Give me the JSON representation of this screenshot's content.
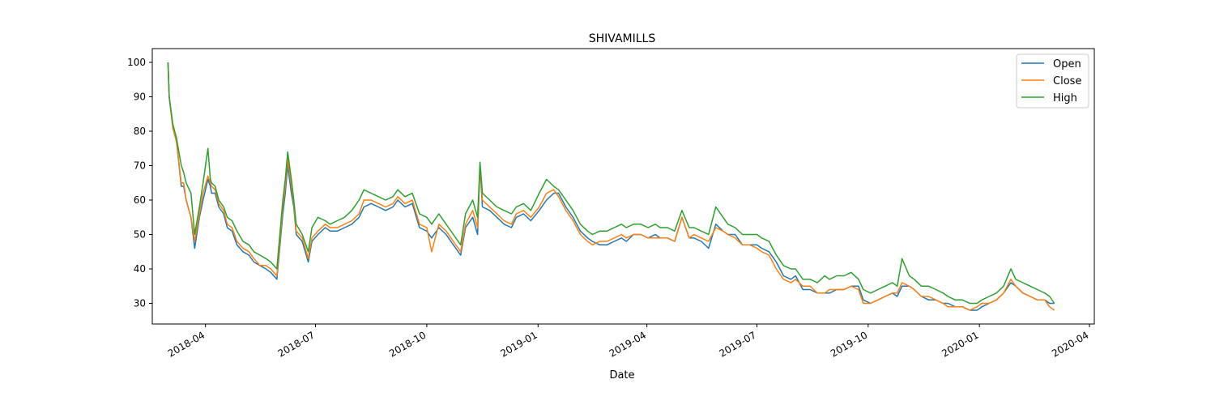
{
  "chart_data": {
    "type": "line",
    "title": "SHIVAMILLS",
    "xlabel": "Date",
    "ylabel": "",
    "xlim": [
      "2018-02-16",
      "2020-04-05"
    ],
    "ylim": [
      24,
      104
    ],
    "yticks": [
      30,
      40,
      50,
      60,
      70,
      80,
      90,
      100
    ],
    "xticks": [
      "2018-04",
      "2018-07",
      "2018-10",
      "2019-01",
      "2019-04",
      "2019-07",
      "2019-10",
      "2020-01",
      "2020-04"
    ],
    "grid": false,
    "legend_position": "top-right",
    "x": [
      "2018-03-01",
      "2018-03-02",
      "2018-03-05",
      "2018-03-08",
      "2018-03-12",
      "2018-03-14",
      "2018-03-16",
      "2018-03-20",
      "2018-03-23",
      "2018-03-27",
      "2018-03-30",
      "2018-04-03",
      "2018-04-05",
      "2018-04-06",
      "2018-04-09",
      "2018-04-12",
      "2018-04-16",
      "2018-04-19",
      "2018-04-23",
      "2018-04-27",
      "2018-05-02",
      "2018-05-07",
      "2018-05-11",
      "2018-05-16",
      "2018-05-21",
      "2018-05-25",
      "2018-05-30",
      "2018-06-04",
      "2018-06-06",
      "2018-06-08",
      "2018-06-11",
      "2018-06-13",
      "2018-06-15",
      "2018-06-20",
      "2018-06-25",
      "2018-06-28",
      "2018-07-03",
      "2018-07-09",
      "2018-07-13",
      "2018-07-19",
      "2018-07-25",
      "2018-07-31",
      "2018-08-06",
      "2018-08-10",
      "2018-08-16",
      "2018-08-22",
      "2018-08-28",
      "2018-09-03",
      "2018-09-07",
      "2018-09-13",
      "2018-09-19",
      "2018-09-25",
      "2018-10-01",
      "2018-10-05",
      "2018-10-11",
      "2018-10-17",
      "2018-10-23",
      "2018-10-29",
      "2018-11-02",
      "2018-11-08",
      "2018-11-12",
      "2018-11-14",
      "2018-11-16",
      "2018-11-22",
      "2018-11-28",
      "2018-12-04",
      "2018-12-10",
      "2018-12-14",
      "2018-12-20",
      "2018-12-26",
      "2019-01-02",
      "2019-01-08",
      "2019-01-14",
      "2019-01-18",
      "2019-01-24",
      "2019-01-30",
      "2019-02-05",
      "2019-02-11",
      "2019-02-15",
      "2019-02-21",
      "2019-02-27",
      "2019-03-05",
      "2019-03-11",
      "2019-03-15",
      "2019-03-21",
      "2019-03-27",
      "2019-04-02",
      "2019-04-08",
      "2019-04-12",
      "2019-04-18",
      "2019-04-24",
      "2019-04-30",
      "2019-05-06",
      "2019-05-10",
      "2019-05-16",
      "2019-05-22",
      "2019-05-28",
      "2019-06-03",
      "2019-06-07",
      "2019-06-13",
      "2019-06-19",
      "2019-06-25",
      "2019-07-01",
      "2019-07-05",
      "2019-07-11",
      "2019-07-17",
      "2019-07-23",
      "2019-07-29",
      "2019-08-02",
      "2019-08-08",
      "2019-08-14",
      "2019-08-20",
      "2019-08-26",
      "2019-08-30",
      "2019-09-05",
      "2019-09-11",
      "2019-09-17",
      "2019-09-23",
      "2019-09-27",
      "2019-10-03",
      "2019-10-09",
      "2019-10-15",
      "2019-10-21",
      "2019-10-25",
      "2019-10-29",
      "2019-11-04",
      "2019-11-08",
      "2019-11-14",
      "2019-11-20",
      "2019-11-26",
      "2019-12-02",
      "2019-12-06",
      "2019-12-12",
      "2019-12-18",
      "2019-12-24",
      "2019-12-30",
      "2020-01-03",
      "2020-01-09",
      "2020-01-15",
      "2020-01-21",
      "2020-01-27",
      "2020-01-31",
      "2020-02-06",
      "2020-02-12",
      "2020-02-18",
      "2020-02-24",
      "2020-02-28",
      "2020-03-03"
    ],
    "series": [
      {
        "name": "Open",
        "color": "#1f77b4",
        "values": [
          100,
          90,
          81,
          77,
          64,
          64,
          60,
          55,
          46,
          55,
          60,
          66,
          64,
          62,
          62,
          58,
          56,
          52,
          51,
          47,
          45,
          44,
          42,
          41,
          40,
          39,
          37,
          56,
          62,
          70,
          62,
          58,
          50,
          48,
          42,
          48,
          50,
          52,
          51,
          51,
          52,
          53,
          55,
          58,
          59,
          58,
          57,
          58,
          60,
          58,
          59,
          52,
          51,
          49,
          52,
          50,
          47,
          44,
          52,
          55,
          50,
          70,
          58,
          57,
          55,
          53,
          52,
          55,
          56,
          54,
          57,
          60,
          62,
          62,
          58,
          55,
          51,
          49,
          48,
          47,
          47,
          48,
          49,
          48,
          50,
          50,
          49,
          50,
          49,
          49,
          48,
          55,
          49,
          49,
          48,
          46,
          53,
          51,
          50,
          50,
          47,
          47,
          47,
          46,
          45,
          42,
          38,
          37,
          38,
          34,
          34,
          33,
          33,
          33,
          34,
          34,
          35,
          35,
          31,
          30,
          31,
          32,
          33,
          32,
          35,
          35,
          34,
          32,
          31,
          31,
          30,
          30,
          29,
          29,
          28,
          28,
          29,
          30,
          31,
          33,
          36,
          35,
          33,
          32,
          31,
          31,
          30,
          30
        ]
      },
      {
        "name": "Close",
        "color": "#ff7f0e",
        "values": [
          100,
          90,
          81,
          77,
          65,
          65,
          60,
          55,
          48,
          56,
          62,
          67,
          65,
          64,
          63,
          59,
          57,
          53,
          52,
          48,
          46,
          45,
          43,
          41,
          41,
          40,
          38,
          58,
          64,
          72,
          64,
          59,
          51,
          49,
          43,
          49,
          51,
          53,
          52,
          52,
          53,
          54,
          56,
          60,
          60,
          59,
          58,
          59,
          61,
          59,
          60,
          53,
          52,
          45,
          53,
          51,
          48,
          45,
          53,
          57,
          52,
          70,
          60,
          58,
          56,
          54,
          53,
          56,
          57,
          55,
          58,
          62,
          63,
          61,
          57,
          54,
          50,
          48,
          47,
          48,
          48,
          49,
          50,
          49,
          50,
          50,
          49,
          49,
          49,
          49,
          48,
          55,
          49,
          50,
          49,
          48,
          52,
          51,
          50,
          49,
          47,
          47,
          46,
          45,
          44,
          40,
          37,
          36,
          37,
          35,
          35,
          33,
          33,
          34,
          34,
          34,
          35,
          34,
          30,
          30,
          31,
          32,
          33,
          33,
          36,
          35,
          34,
          32,
          32,
          31,
          30,
          29,
          29,
          29,
          28,
          29,
          30,
          30,
          31,
          33,
          37,
          35,
          33,
          32,
          31,
          31,
          29,
          28
        ]
      },
      {
        "name": "High",
        "color": "#2ca02c",
        "values": [
          100,
          90,
          82,
          78,
          70,
          68,
          65,
          62,
          50,
          58,
          65,
          75,
          66,
          65,
          64,
          60,
          58,
          55,
          54,
          51,
          48,
          47,
          45,
          44,
          43,
          42,
          40,
          60,
          66,
          74,
          66,
          60,
          53,
          50,
          45,
          52,
          55,
          54,
          53,
          54,
          55,
          57,
          60,
          63,
          62,
          61,
          60,
          61,
          63,
          61,
          62,
          56,
          55,
          53,
          56,
          53,
          50,
          47,
          56,
          60,
          55,
          71,
          62,
          60,
          58,
          57,
          56,
          58,
          59,
          57,
          62,
          66,
          64,
          63,
          60,
          57,
          53,
          51,
          50,
          51,
          51,
          52,
          53,
          52,
          53,
          53,
          52,
          53,
          52,
          52,
          51,
          57,
          52,
          52,
          51,
          50,
          58,
          55,
          53,
          52,
          50,
          50,
          50,
          49,
          48,
          44,
          41,
          40,
          40,
          37,
          37,
          36,
          38,
          37,
          38,
          38,
          39,
          37,
          34,
          33,
          34,
          35,
          36,
          35,
          43,
          38,
          37,
          35,
          35,
          34,
          33,
          32,
          31,
          31,
          30,
          30,
          31,
          32,
          33,
          35,
          40,
          37,
          36,
          35,
          34,
          33,
          32,
          30
        ]
      }
    ]
  }
}
